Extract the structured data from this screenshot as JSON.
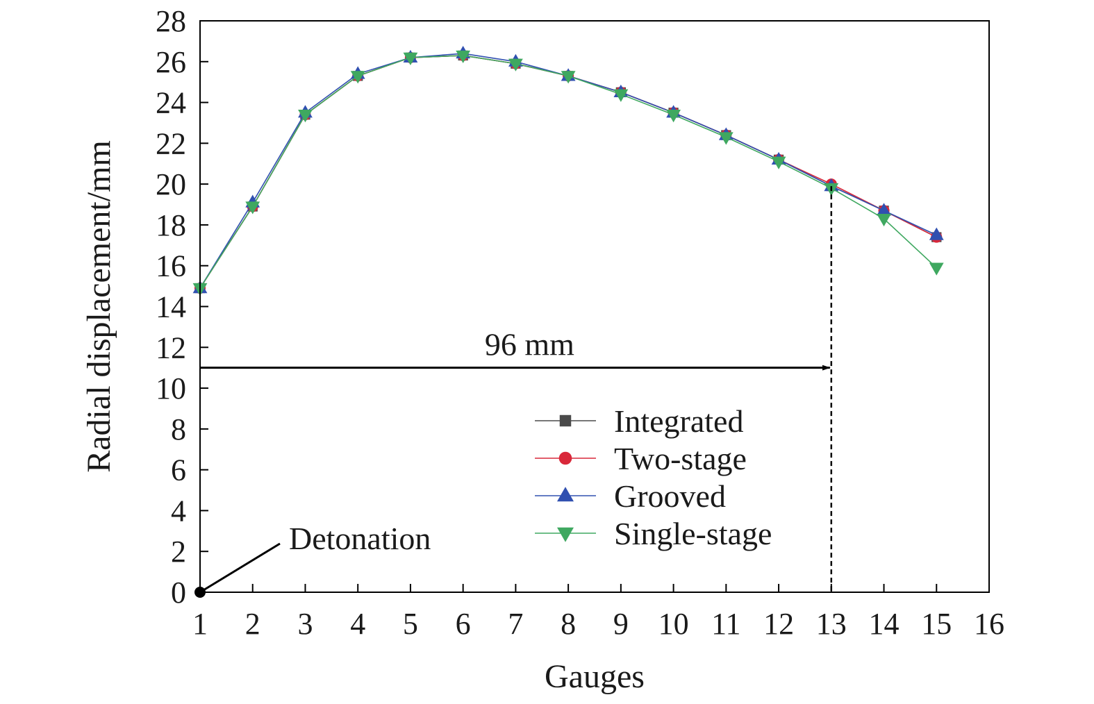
{
  "chart_data": {
    "type": "line",
    "xlabel": "Gauges",
    "ylabel": "Radial displacement/mm",
    "xlim": [
      1,
      16
    ],
    "ylim": [
      0,
      28
    ],
    "xticks": [
      1,
      2,
      3,
      4,
      5,
      6,
      7,
      8,
      9,
      10,
      11,
      12,
      13,
      14,
      15,
      16
    ],
    "yticks": [
      0,
      2,
      4,
      6,
      8,
      10,
      12,
      14,
      16,
      18,
      20,
      22,
      24,
      26,
      28
    ],
    "grid": false,
    "legend_position": "lower-right",
    "x": [
      1,
      2,
      3,
      4,
      5,
      6,
      7,
      8,
      9,
      10,
      11,
      12,
      13,
      14,
      15
    ],
    "series": [
      {
        "name": "Integrated",
        "marker": "square",
        "color": "#4a4a4a",
        "values": [
          14.9,
          18.9,
          23.4,
          25.3,
          26.2,
          26.3,
          25.9,
          25.3,
          24.5,
          23.5,
          22.4,
          21.2,
          19.9,
          18.7,
          17.4
        ]
      },
      {
        "name": "Two-stage",
        "marker": "circle",
        "color": "#d9283a",
        "values": [
          14.9,
          18.9,
          23.4,
          25.3,
          26.2,
          26.3,
          25.9,
          25.3,
          24.5,
          23.5,
          22.4,
          21.2,
          20.0,
          18.7,
          17.4
        ]
      },
      {
        "name": "Grooved",
        "marker": "triangle-up",
        "color": "#3050b0",
        "values": [
          14.9,
          19.1,
          23.5,
          25.4,
          26.2,
          26.4,
          26.0,
          25.3,
          24.5,
          23.5,
          22.4,
          21.2,
          19.9,
          18.7,
          17.5
        ]
      },
      {
        "name": "Single-stage",
        "marker": "triangle-down",
        "color": "#3fa860",
        "values": [
          14.9,
          18.9,
          23.4,
          25.3,
          26.2,
          26.3,
          25.9,
          25.3,
          24.4,
          23.4,
          22.3,
          21.1,
          19.8,
          18.3,
          15.9
        ]
      }
    ],
    "annotations": [
      {
        "text": "96 mm",
        "type": "arrow",
        "from": [
          1,
          11
        ],
        "to": [
          13,
          11
        ]
      },
      {
        "text": "",
        "type": "dashed-vline",
        "x": 13,
        "y_from": 0,
        "y_to": 19.9
      },
      {
        "text": "Detonation",
        "type": "point-label",
        "x": 1,
        "y": 0
      }
    ]
  }
}
